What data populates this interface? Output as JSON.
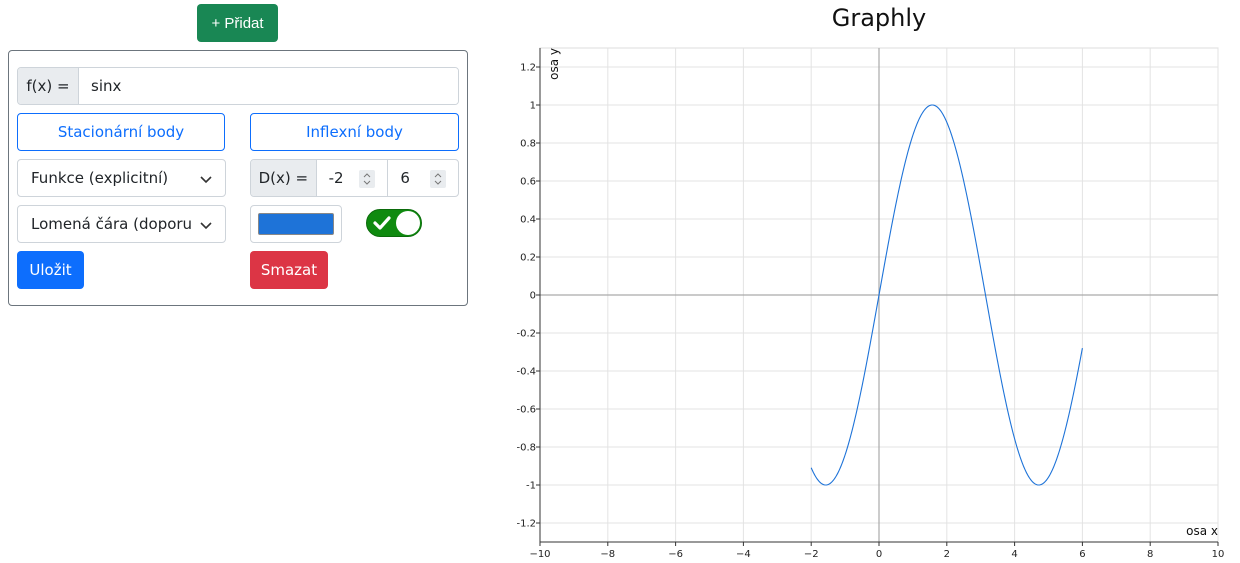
{
  "toolbar": {
    "add_label": "+ Přidat"
  },
  "function_card": {
    "fx_label": "f(x) =",
    "fx_value": "sinx",
    "stationary_label": "Stacionární body",
    "inflection_label": "Inflexní body",
    "function_type": "Funkce (explicitní)",
    "render_mode": "Lomená čára (doporuč",
    "domain_label": "D(x) =",
    "domain_min": "-2",
    "domain_max": "6",
    "line_color": "#1e73d8",
    "visible_toggle": true,
    "save_label": "Uložit",
    "delete_label": "Smazat"
  },
  "graph": {
    "title": "Graphly",
    "xlabel": "osa x",
    "ylabel": "osa y"
  },
  "chart_data": {
    "type": "line",
    "title": "Graphly",
    "xlabel": "osa x",
    "ylabel": "osa y",
    "xlim": [
      -10,
      10
    ],
    "ylim": [
      -1.3,
      1.3
    ],
    "x_ticks": [
      "−10",
      "−8",
      "−6",
      "−4",
      "−2",
      "0",
      "2",
      "4",
      "6",
      "8",
      "10"
    ],
    "y_ticks": [
      "1.2",
      "1",
      "0.8",
      "0.6",
      "0.4",
      "0.2",
      "0",
      "-0.2",
      "-0.4",
      "-0.6",
      "-0.8",
      "-1",
      "-1.2"
    ],
    "grid": true,
    "series": [
      {
        "function": "sinx",
        "x_range": [
          -2,
          6
        ],
        "color": "#1e73d8"
      }
    ]
  }
}
